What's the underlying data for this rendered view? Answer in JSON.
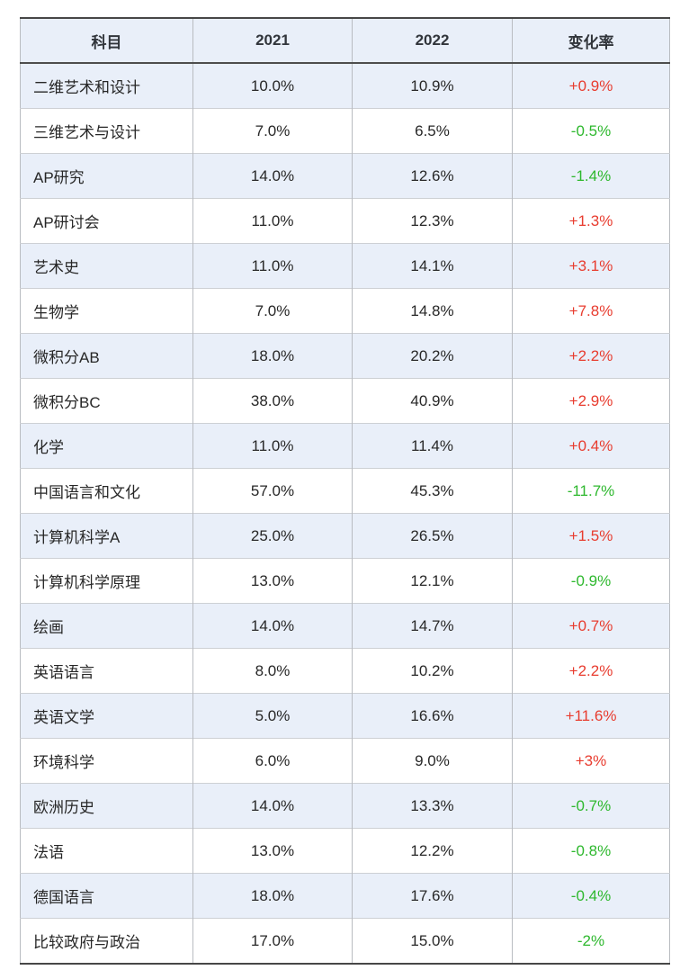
{
  "colors": {
    "positive": "#e83c2f",
    "negative": "#2eb82e",
    "stripe": "#e9eff9",
    "header_text": "#31353b",
    "body_text": "#272727"
  },
  "table": {
    "headers": [
      "科目",
      "2021",
      "2022",
      "变化率"
    ],
    "rows": [
      {
        "subject": "二维艺术和设计",
        "y2021": "10.0%",
        "y2022": "10.9%",
        "change": "+0.9%"
      },
      {
        "subject": "三维艺术与设计",
        "y2021": "7.0%",
        "y2022": "6.5%",
        "change": "-0.5%"
      },
      {
        "subject": "AP研究",
        "y2021": "14.0%",
        "y2022": "12.6%",
        "change": "-1.4%"
      },
      {
        "subject": "AP研讨会",
        "y2021": "11.0%",
        "y2022": "12.3%",
        "change": "+1.3%"
      },
      {
        "subject": "艺术史",
        "y2021": "11.0%",
        "y2022": "14.1%",
        "change": "+3.1%"
      },
      {
        "subject": "生物学",
        "y2021": "7.0%",
        "y2022": "14.8%",
        "change": "+7.8%"
      },
      {
        "subject": "微积分AB",
        "y2021": "18.0%",
        "y2022": "20.2%",
        "change": "+2.2%"
      },
      {
        "subject": "微积分BC",
        "y2021": "38.0%",
        "y2022": "40.9%",
        "change": "+2.9%"
      },
      {
        "subject": "化学",
        "y2021": "11.0%",
        "y2022": "11.4%",
        "change": "+0.4%"
      },
      {
        "subject": "中国语言和文化",
        "y2021": "57.0%",
        "y2022": "45.3%",
        "change": "-11.7%"
      },
      {
        "subject": "计算机科学A",
        "y2021": "25.0%",
        "y2022": "26.5%",
        "change": "+1.5%"
      },
      {
        "subject": "计算机科学原理",
        "y2021": "13.0%",
        "y2022": "12.1%",
        "change": "-0.9%"
      },
      {
        "subject": "绘画",
        "y2021": "14.0%",
        "y2022": "14.7%",
        "change": "+0.7%"
      },
      {
        "subject": "英语语言",
        "y2021": "8.0%",
        "y2022": "10.2%",
        "change": "+2.2%"
      },
      {
        "subject": "英语文学",
        "y2021": "5.0%",
        "y2022": "16.6%",
        "change": "+11.6%"
      },
      {
        "subject": "环境科学",
        "y2021": "6.0%",
        "y2022": "9.0%",
        "change": "+3%"
      },
      {
        "subject": "欧洲历史",
        "y2021": "14.0%",
        "y2022": "13.3%",
        "change": "-0.7%"
      },
      {
        "subject": "法语",
        "y2021": "13.0%",
        "y2022": "12.2%",
        "change": "-0.8%"
      },
      {
        "subject": "德国语言",
        "y2021": "18.0%",
        "y2022": "17.6%",
        "change": "-0.4%"
      },
      {
        "subject": "比较政府与政治",
        "y2021": "17.0%",
        "y2022": "15.0%",
        "change": "-2%"
      }
    ]
  },
  "chart_data": {
    "type": "table",
    "title": "",
    "columns": [
      "科目",
      "2021",
      "2022",
      "变化率"
    ],
    "categories": [
      "二维艺术和设计",
      "三维艺术与设计",
      "AP研究",
      "AP研讨会",
      "艺术史",
      "生物学",
      "微积分AB",
      "微积分BC",
      "化学",
      "中国语言和文化",
      "计算机科学A",
      "计算机科学原理",
      "绘画",
      "英语语言",
      "英语文学",
      "环境科学",
      "欧洲历史",
      "法语",
      "德国语言",
      "比较政府与政治"
    ],
    "series": [
      {
        "name": "2021",
        "values": [
          10.0,
          7.0,
          14.0,
          11.0,
          11.0,
          7.0,
          18.0,
          38.0,
          11.0,
          57.0,
          25.0,
          13.0,
          14.0,
          8.0,
          5.0,
          6.0,
          14.0,
          13.0,
          18.0,
          17.0
        ]
      },
      {
        "name": "2022",
        "values": [
          10.9,
          6.5,
          12.6,
          12.3,
          14.1,
          14.8,
          20.2,
          40.9,
          11.4,
          45.3,
          26.5,
          12.1,
          14.7,
          10.2,
          16.6,
          9.0,
          13.3,
          12.2,
          17.6,
          15.0
        ]
      },
      {
        "name": "变化率",
        "values": [
          0.9,
          -0.5,
          -1.4,
          1.3,
          3.1,
          7.8,
          2.2,
          2.9,
          0.4,
          -11.7,
          1.5,
          -0.9,
          0.7,
          2.2,
          11.6,
          3.0,
          -0.7,
          -0.8,
          -0.4,
          -2.0
        ]
      }
    ],
    "unit": "%",
    "layout_hints": {
      "striped_rows": true,
      "positive_change_color": "#e83c2f",
      "negative_change_color": "#2eb82e"
    }
  }
}
